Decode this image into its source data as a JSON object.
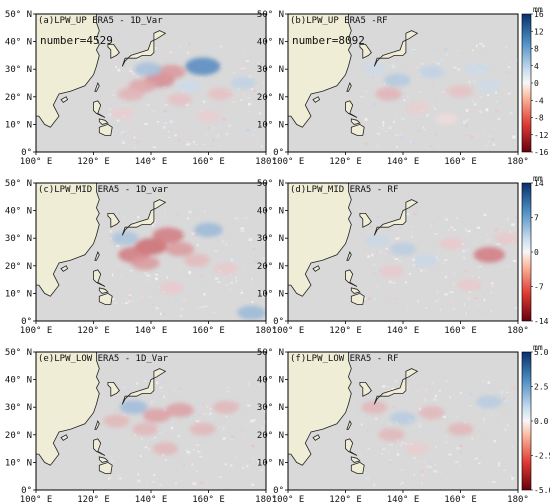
{
  "chart_data": [
    {
      "type": "heatmap",
      "title": "(a)LPW_UP  ERA5 - 1D_Var",
      "annotation": "number=4529",
      "x_ticks": [
        "100° E",
        "120° E",
        "140° E",
        "160° E",
        "180°"
      ],
      "y_ticks": [
        "0°",
        "10° N",
        "20° N",
        "30° N",
        "40° N",
        "50° N"
      ],
      "xlim": [
        100,
        180
      ],
      "ylim": [
        0,
        50
      ],
      "grid": false,
      "colorbar": null,
      "patches": [
        {
          "lon": 143,
          "lat": 26,
          "value": 8
        },
        {
          "lon": 137,
          "lat": 24,
          "value": 6
        },
        {
          "lon": 147,
          "lat": 29,
          "value": 7
        },
        {
          "lon": 133,
          "lat": 21,
          "value": 5
        },
        {
          "lon": 139,
          "lat": 30,
          "value": -6
        },
        {
          "lon": 158,
          "lat": 31,
          "value": -12
        },
        {
          "lon": 150,
          "lat": 19,
          "value": 4
        },
        {
          "lon": 164,
          "lat": 21,
          "value": 4
        },
        {
          "lon": 160,
          "lat": 13,
          "value": 3
        },
        {
          "lon": 130,
          "lat": 14,
          "value": 3
        },
        {
          "lon": 172,
          "lat": 25,
          "value": -4
        },
        {
          "lon": 153,
          "lat": 24,
          "value": -3
        }
      ]
    },
    {
      "type": "heatmap",
      "title": "(b)LPW_UP  ERA5 -RF",
      "annotation": "number=8092",
      "x_ticks": [
        "100° E",
        "120° E",
        "140° E",
        "160° E",
        "180°"
      ],
      "y_ticks": [
        "0°",
        "10° N",
        "20° N",
        "30° N",
        "40° N",
        "50° N"
      ],
      "xlim": [
        100,
        180
      ],
      "ylim": [
        0,
        50
      ],
      "grid": false,
      "colorbar": {
        "unit": "mm",
        "ticks": [
          "16",
          "12",
          "8",
          "4",
          "0",
          "-4",
          "-8",
          "-12",
          "-16"
        ],
        "range": [
          -16,
          16
        ]
      },
      "patches": [
        {
          "lon": 138,
          "lat": 26,
          "value": -5
        },
        {
          "lon": 150,
          "lat": 29,
          "value": -4
        },
        {
          "lon": 135,
          "lat": 21,
          "value": 5
        },
        {
          "lon": 160,
          "lat": 22,
          "value": 4
        },
        {
          "lon": 170,
          "lat": 24,
          "value": -3
        },
        {
          "lon": 145,
          "lat": 16,
          "value": 3
        },
        {
          "lon": 130,
          "lat": 30,
          "value": -3
        },
        {
          "lon": 155,
          "lat": 12,
          "value": 2
        },
        {
          "lon": 166,
          "lat": 30,
          "value": -3
        }
      ]
    },
    {
      "type": "heatmap",
      "title": "(c)LPW_MID  ERA5 - 1D_var",
      "annotation": "",
      "x_ticks": [
        "100° E",
        "120° E",
        "140° E",
        "160° E",
        "180°"
      ],
      "y_ticks": [
        "0°",
        "10° N",
        "20° N",
        "30° N",
        "40° N",
        "50° N"
      ],
      "xlim": [
        100,
        180
      ],
      "ylim": [
        0,
        50
      ],
      "grid": false,
      "colorbar": null,
      "patches": [
        {
          "lon": 140,
          "lat": 27,
          "value": 9
        },
        {
          "lon": 134,
          "lat": 24,
          "value": 8
        },
        {
          "lon": 146,
          "lat": 31,
          "value": 8
        },
        {
          "lon": 138,
          "lat": 21,
          "value": 6
        },
        {
          "lon": 150,
          "lat": 26,
          "value": 6
        },
        {
          "lon": 131,
          "lat": 30,
          "value": -5
        },
        {
          "lon": 160,
          "lat": 33,
          "value": -6
        },
        {
          "lon": 156,
          "lat": 22,
          "value": 4
        },
        {
          "lon": 166,
          "lat": 19,
          "value": 3
        },
        {
          "lon": 175,
          "lat": 3,
          "value": -6
        },
        {
          "lon": 147,
          "lat": 12,
          "value": 3
        }
      ]
    },
    {
      "type": "heatmap",
      "title": "(d)LPW_MID  ERA5 - RF",
      "annotation": "",
      "x_ticks": [
        "100° E",
        "120° E",
        "140° E",
        "160° E",
        "180°"
      ],
      "y_ticks": [
        "0°",
        "10° N",
        "20° N",
        "30° N",
        "40° N",
        "50° N"
      ],
      "xlim": [
        100,
        180
      ],
      "ylim": [
        0,
        50
      ],
      "grid": false,
      "colorbar": {
        "unit": "mm",
        "ticks": [
          "14",
          "7",
          "0",
          "-7",
          "-14"
        ],
        "range": [
          -14,
          14
        ]
      },
      "patches": [
        {
          "lon": 140,
          "lat": 26,
          "value": -4
        },
        {
          "lon": 148,
          "lat": 22,
          "value": -3
        },
        {
          "lon": 170,
          "lat": 24,
          "value": 8
        },
        {
          "lon": 136,
          "lat": 18,
          "value": 3
        },
        {
          "lon": 157,
          "lat": 28,
          "value": 3
        },
        {
          "lon": 163,
          "lat": 13,
          "value": 3
        },
        {
          "lon": 131,
          "lat": 29,
          "value": -3
        },
        {
          "lon": 176,
          "lat": 30,
          "value": 3
        }
      ]
    },
    {
      "type": "heatmap",
      "title": "(e)LPW_LOW  ERA5 - 1D_Var",
      "annotation": "",
      "x_ticks": [
        "100° E",
        "120° E",
        "140° E",
        "160° E",
        "180°"
      ],
      "y_ticks": [
        "0°",
        "10° N",
        "20° N",
        "30° N",
        "40° N",
        "50° N"
      ],
      "xlim": [
        100,
        180
      ],
      "ylim": [
        0,
        50
      ],
      "grid": false,
      "colorbar": null,
      "patches": [
        {
          "lon": 142,
          "lat": 27,
          "value": 2
        },
        {
          "lon": 134,
          "lat": 30,
          "value": -2
        },
        {
          "lon": 150,
          "lat": 29,
          "value": 2
        },
        {
          "lon": 138,
          "lat": 22,
          "value": 1.5
        },
        {
          "lon": 158,
          "lat": 22,
          "value": 1.5
        },
        {
          "lon": 166,
          "lat": 30,
          "value": 1.5
        },
        {
          "lon": 145,
          "lat": 15,
          "value": 1.5
        },
        {
          "lon": 128,
          "lat": 25,
          "value": 1.5
        }
      ]
    },
    {
      "type": "heatmap",
      "title": "(f)LPW_LOW  ERA5 - RF",
      "annotation": "",
      "x_ticks": [
        "100° E",
        "120° E",
        "140° E",
        "160° E",
        "180°"
      ],
      "y_ticks": [
        "0°",
        "10° N",
        "20° N",
        "30° N",
        "40° N",
        "50° N"
      ],
      "xlim": [
        100,
        180
      ],
      "ylim": [
        0,
        50
      ],
      "grid": false,
      "colorbar": {
        "unit": "mm",
        "ticks": [
          "5.0",
          "2.5",
          "0.0",
          "-2.5",
          "-5.0"
        ],
        "range": [
          -5,
          5
        ]
      },
      "patches": [
        {
          "lon": 140,
          "lat": 26,
          "value": -1.5
        },
        {
          "lon": 150,
          "lat": 28,
          "value": 1.5
        },
        {
          "lon": 136,
          "lat": 20,
          "value": 1.5
        },
        {
          "lon": 160,
          "lat": 22,
          "value": 1.5
        },
        {
          "lon": 170,
          "lat": 32,
          "value": -1.5
        },
        {
          "lon": 145,
          "lat": 15,
          "value": 1
        },
        {
          "lon": 130,
          "lat": 30,
          "value": 1.5
        }
      ]
    }
  ],
  "colors": {
    "ocean": "#d9d9d9",
    "land": "#efedd6",
    "positive": "#c0392b",
    "negative": "#2f6fad",
    "coast": "#222222"
  }
}
